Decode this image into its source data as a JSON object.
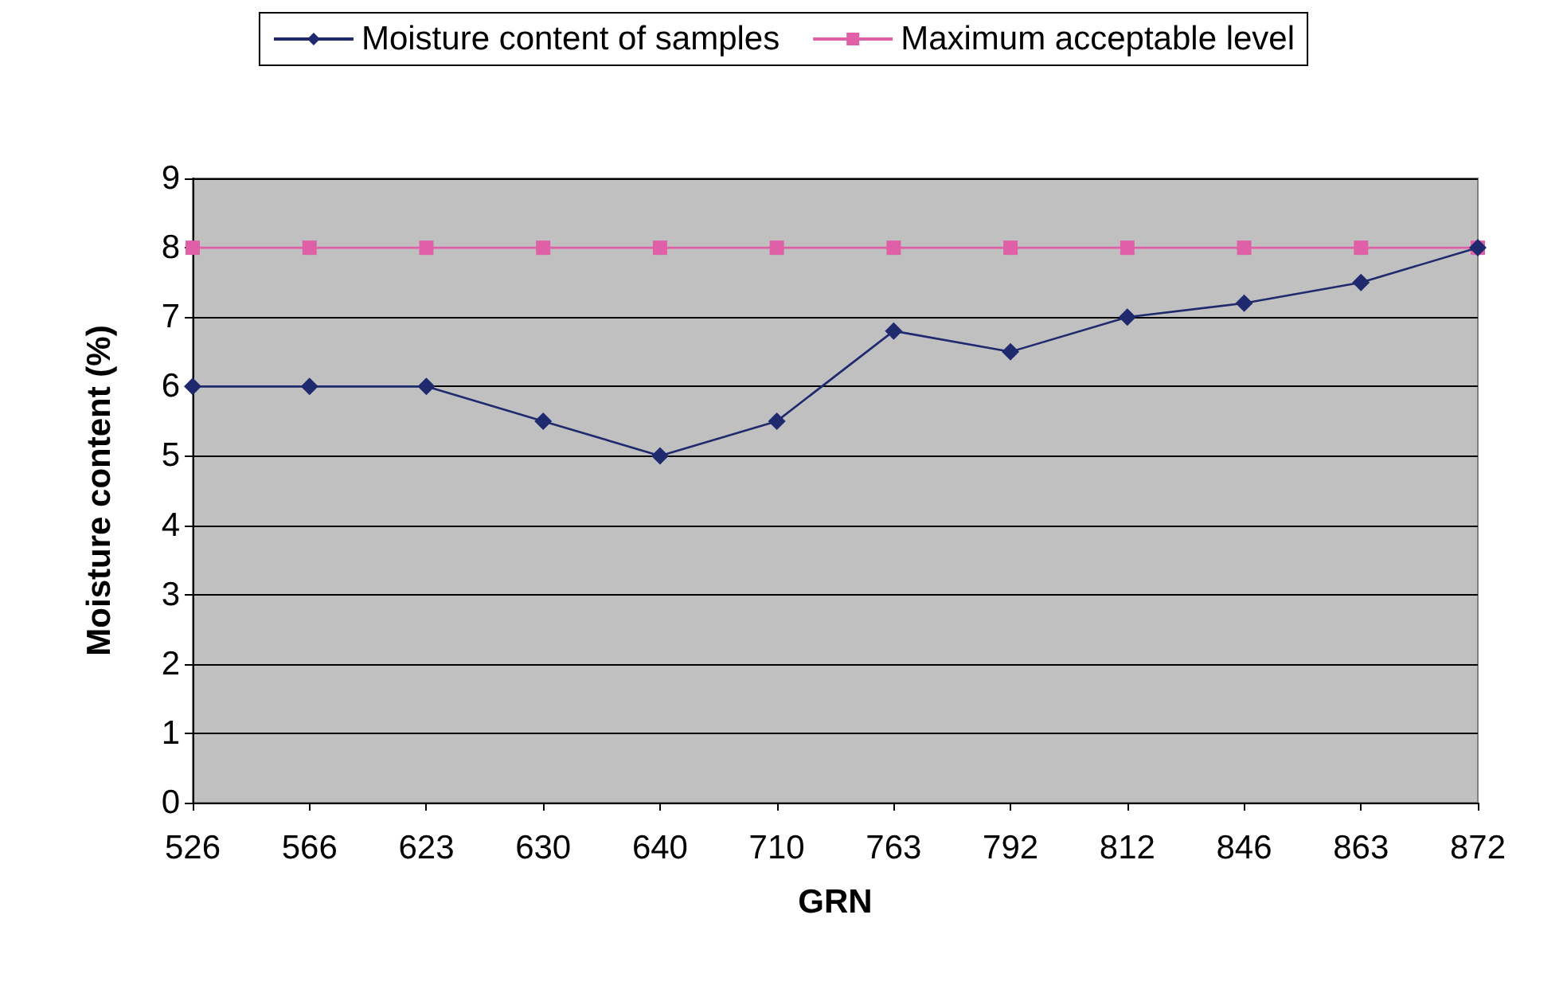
{
  "chart_data": {
    "type": "line",
    "xlabel": "GRN",
    "ylabel": "Moisture content (%)",
    "categories": [
      "526",
      "566",
      "623",
      "630",
      "640",
      "710",
      "763",
      "792",
      "812",
      "846",
      "863",
      "872"
    ],
    "series": [
      {
        "name": "Moisture content of samples",
        "color": "#1f2a6e",
        "marker": "diamond",
        "values": [
          6,
          6,
          6,
          5.5,
          5,
          5.5,
          6.8,
          6.5,
          7,
          7.2,
          7.5,
          8
        ]
      },
      {
        "name": "Maximum acceptable level",
        "color": "#e060a8",
        "marker": "square",
        "values": [
          8,
          8,
          8,
          8,
          8,
          8,
          8,
          8,
          8,
          8,
          8,
          8
        ]
      }
    ],
    "ylim": [
      0,
      9
    ],
    "yticks": [
      0,
      1,
      2,
      3,
      4,
      5,
      6,
      7,
      8,
      9
    ],
    "grid": "y",
    "legend": "top",
    "line_style": "solid"
  }
}
